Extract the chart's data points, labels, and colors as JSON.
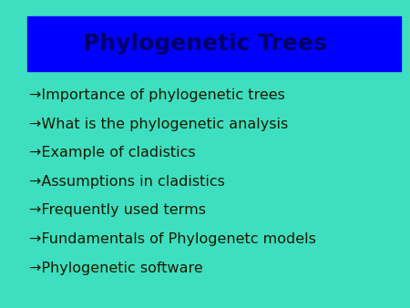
{
  "title": "Phylogenetic Trees",
  "title_bg_color": "#0000FF",
  "title_text_color": "#000066",
  "background_color": "#3DDFC0",
  "bullet_items": [
    "→Importance of phylogenetic trees",
    "→What is the phylogenetic analysis",
    "→Example of cladistics",
    "→Assumptions in cladistics",
    "→Frequently used terms",
    "→Fundamentals of Phylogenetc models",
    "→Phylogenetic software"
  ],
  "bullet_text_color": "#1a1a00",
  "title_fontsize": 18,
  "bullet_fontsize": 11.5,
  "fig_width": 4.5,
  "fig_height": 3.38,
  "dpi": 100
}
